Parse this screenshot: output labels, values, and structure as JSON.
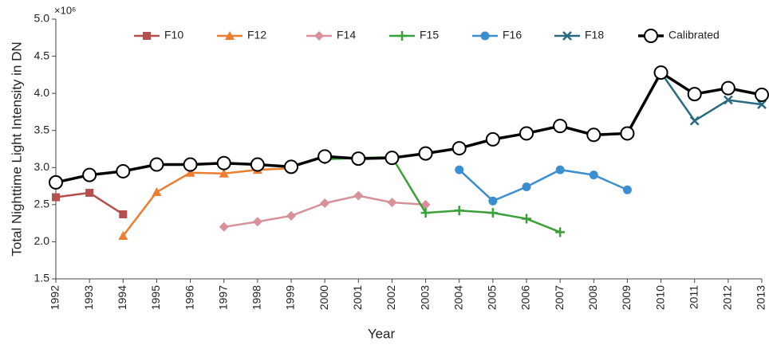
{
  "chart_data": {
    "type": "line",
    "y_label": "Total Nighttime Light Intensity in DN",
    "x_label": "Year",
    "y_multiplier": "×10⁶",
    "categories": [
      "1992",
      "1993",
      "1994",
      "1995",
      "1996",
      "1997",
      "1998",
      "1999",
      "2000",
      "2001",
      "2002",
      "2003",
      "2004",
      "2005",
      "2006",
      "2007",
      "2008",
      "2009",
      "2010",
      "2011",
      "2012",
      "2013"
    ],
    "ylim": [
      1.5,
      5.0
    ],
    "yticks": [
      1.5,
      {
        "value": 2,
        "label": "2.0"
      },
      2.5,
      {
        "value": 3,
        "label": "3.0"
      },
      3.5,
      {
        "value": 4,
        "label": "4.0"
      },
      4.5,
      {
        "value": 5,
        "label": "5.0"
      }
    ],
    "grid": false,
    "legend": "top",
    "series": [
      {
        "name": "F10",
        "color": "#b5504f",
        "marker": "square",
        "values": [
          2.6,
          2.66,
          2.37,
          null,
          null,
          null,
          null,
          null,
          null,
          null,
          null,
          null,
          null,
          null,
          null,
          null,
          null,
          null,
          null,
          null,
          null,
          null
        ]
      },
      {
        "name": "F12",
        "color": "#ed7d31",
        "marker": "triangle",
        "values": [
          null,
          null,
          2.08,
          2.67,
          2.93,
          2.92,
          2.97,
          2.99,
          null,
          null,
          null,
          null,
          null,
          null,
          null,
          null,
          null,
          null,
          null,
          null,
          null,
          null
        ]
      },
      {
        "name": "F14",
        "color": "#d8909b",
        "marker": "diamond",
        "values": [
          null,
          null,
          null,
          null,
          null,
          2.2,
          2.27,
          2.35,
          2.52,
          2.62,
          2.53,
          2.5,
          null,
          null,
          null,
          null,
          null,
          null,
          null,
          null,
          null,
          null
        ]
      },
      {
        "name": "F15",
        "color": "#3aa03a",
        "marker": "plus",
        "values": [
          null,
          null,
          null,
          null,
          null,
          null,
          null,
          null,
          3.11,
          3.13,
          3.14,
          2.39,
          2.42,
          2.39,
          2.31,
          2.13,
          null,
          null,
          null,
          null,
          null,
          null
        ]
      },
      {
        "name": "F16",
        "color": "#3b8fd0",
        "marker": "circle",
        "values": [
          null,
          null,
          null,
          null,
          null,
          null,
          null,
          null,
          null,
          null,
          null,
          null,
          2.97,
          2.55,
          2.74,
          2.97,
          2.9,
          2.7,
          null,
          null,
          null,
          null
        ]
      },
      {
        "name": "F18",
        "color": "#2a6a80",
        "marker": "x",
        "values": [
          null,
          null,
          null,
          null,
          null,
          null,
          null,
          null,
          null,
          null,
          null,
          null,
          null,
          null,
          null,
          null,
          null,
          null,
          4.28,
          3.63,
          3.91,
          3.85
        ]
      },
      {
        "name": "Calibrated",
        "color": "#000000",
        "marker": "open-circle",
        "values": [
          2.8,
          2.9,
          2.95,
          3.04,
          3.04,
          3.06,
          3.04,
          3.01,
          3.15,
          3.12,
          3.13,
          3.19,
          3.26,
          3.38,
          3.46,
          3.56,
          3.44,
          3.46,
          4.28,
          3.99,
          4.07,
          3.98
        ]
      }
    ]
  }
}
